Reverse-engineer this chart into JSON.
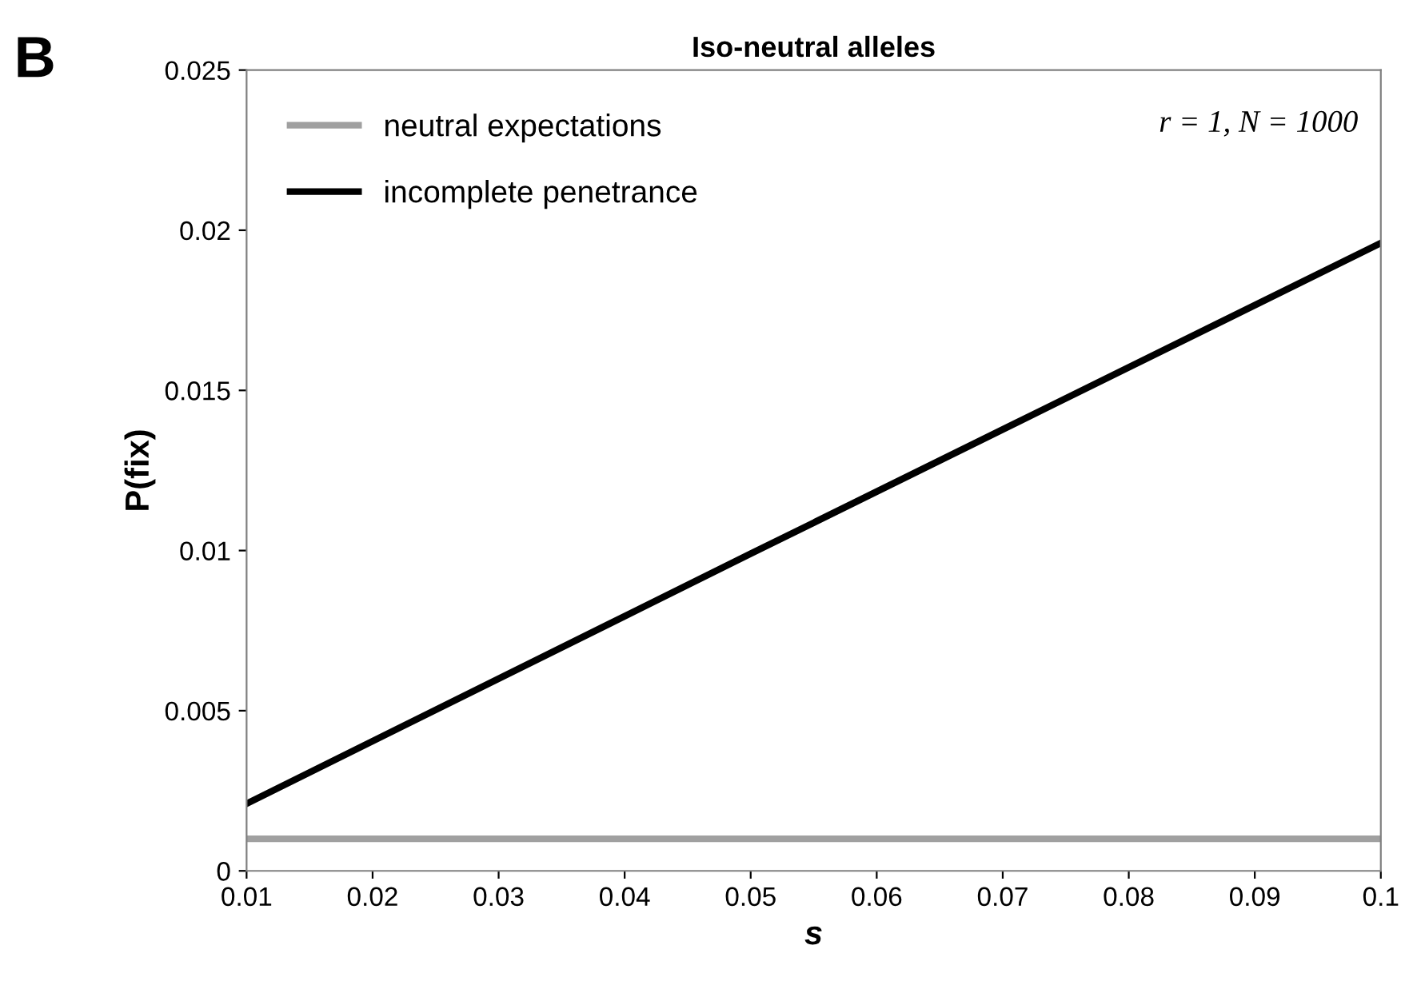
{
  "chart_data": {
    "type": "line",
    "title": "Iso-neutral alleles",
    "xlabel": "s",
    "ylabel": "P(fix)",
    "x": [
      0.01,
      0.05,
      0.1
    ],
    "series": [
      {
        "name": "neutral expectations",
        "color": "#a0a0a0",
        "values": [
          0.001,
          0.001,
          0.001
        ]
      },
      {
        "name": "incomplete penetrance",
        "color": "#000000",
        "values": [
          0.0021,
          0.0099,
          0.0196
        ]
      }
    ],
    "xlim": [
      0.01,
      0.1
    ],
    "xticks": [
      0.01,
      0.02,
      0.03,
      0.04,
      0.05,
      0.06,
      0.07,
      0.08,
      0.09,
      0.1
    ],
    "ylim": [
      0,
      0.025
    ],
    "yticks": [
      0,
      0.005,
      0.01,
      0.015,
      0.02,
      0.025
    ],
    "grid": false,
    "legend": "top left",
    "marker": "none",
    "line_style": "solid",
    "annotations": [
      "B",
      "r = 1, N = 1000"
    ]
  }
}
